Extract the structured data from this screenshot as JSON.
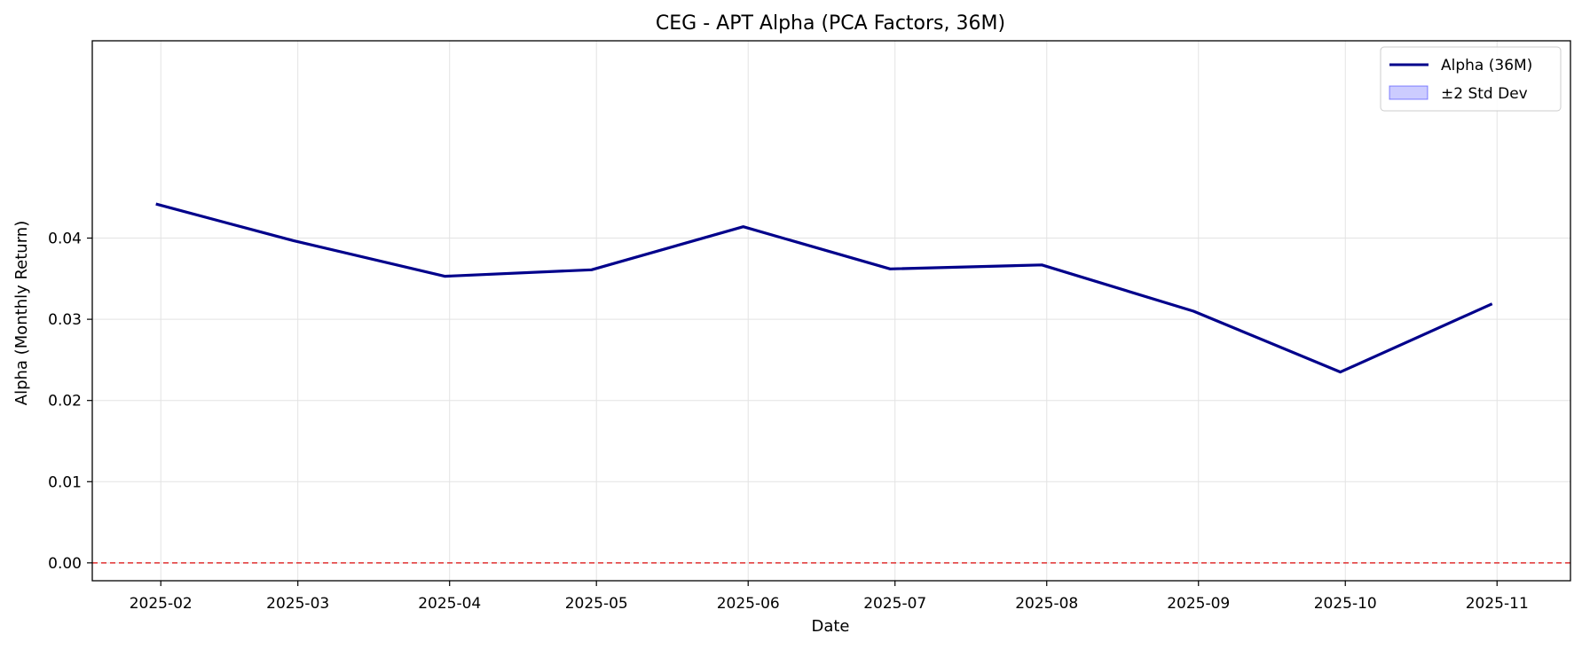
{
  "chart_data": {
    "type": "line",
    "title": "CEG - APT Alpha (PCA Factors, 36M)",
    "xlabel": "Date",
    "ylabel": "Alpha (Monthly Return)",
    "x": [
      "2025-01-31",
      "2025-02-28",
      "2025-03-31",
      "2025-04-30",
      "2025-05-31",
      "2025-06-30",
      "2025-07-31",
      "2025-08-31",
      "2025-09-30",
      "2025-10-31"
    ],
    "series": [
      {
        "name": "Alpha (36M)",
        "color": "#00008b",
        "values": [
          0.0442,
          0.0397,
          0.0353,
          0.0361,
          0.0414,
          0.0362,
          0.0367,
          0.031,
          0.0235,
          0.0319
        ]
      }
    ],
    "band": {
      "name": "±2 Std Dev",
      "color": "#0000ff"
    },
    "reference_line": {
      "y": 0.0,
      "color": "#e03030",
      "style": "dashed"
    },
    "x_ticks": [
      "2025-02",
      "2025-03",
      "2025-04",
      "2025-05",
      "2025-06",
      "2025-07",
      "2025-08",
      "2025-09",
      "2025-10",
      "2025-11"
    ],
    "y_ticks": [
      "0.00",
      "0.01",
      "0.02",
      "0.03",
      "0.04"
    ],
    "ylim": [
      -0.0022,
      0.0643
    ],
    "xlim": [
      "2025-01-18",
      "2025-11-16"
    ],
    "grid": true,
    "legend_position": "top-right"
  }
}
